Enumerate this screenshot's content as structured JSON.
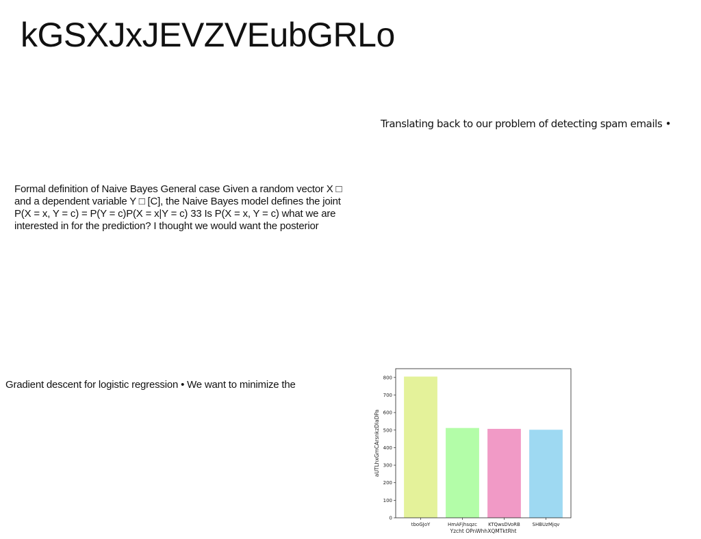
{
  "title": "kGSXJxJEVZVEubGRLo",
  "right_text": "Translating back to our problem of detecting spam emails •",
  "paragraph_lines": [
    "Formal definition of Naive Bayes General case Given a random vector X □",
    "and a dependent variable Y □ [C], the Naive Bayes model defines the joint",
    "P(X = x, Y = c) = P(Y = c)P(X = x|Y = c) 33 Is P(X = x, Y = c) what we are",
    "interested in for the prediction? I thought we would want the posterior"
  ],
  "bottom_text": "Gradient descent for logistic regression • We want to minimize the",
  "chart_data": {
    "type": "bar",
    "categories": [
      "tboGJoY",
      "HmAFjhsqzc",
      "KTQwsDVoRB",
      "SHBUzMjqv"
    ],
    "values": [
      805,
      512,
      507,
      502
    ],
    "colors": [
      "#e4f29a",
      "#b3fda8",
      "#f19ac6",
      "#9ed9f2"
    ],
    "xlabel": "Yzcht OPnWhhXQMTktRht",
    "ylabel": "aUTLhxGmCArsnkzDlaDPa",
    "ylim": [
      0,
      850
    ],
    "yticks": [
      0,
      100,
      200,
      300,
      400,
      500,
      600,
      700,
      800
    ],
    "grid": false
  }
}
